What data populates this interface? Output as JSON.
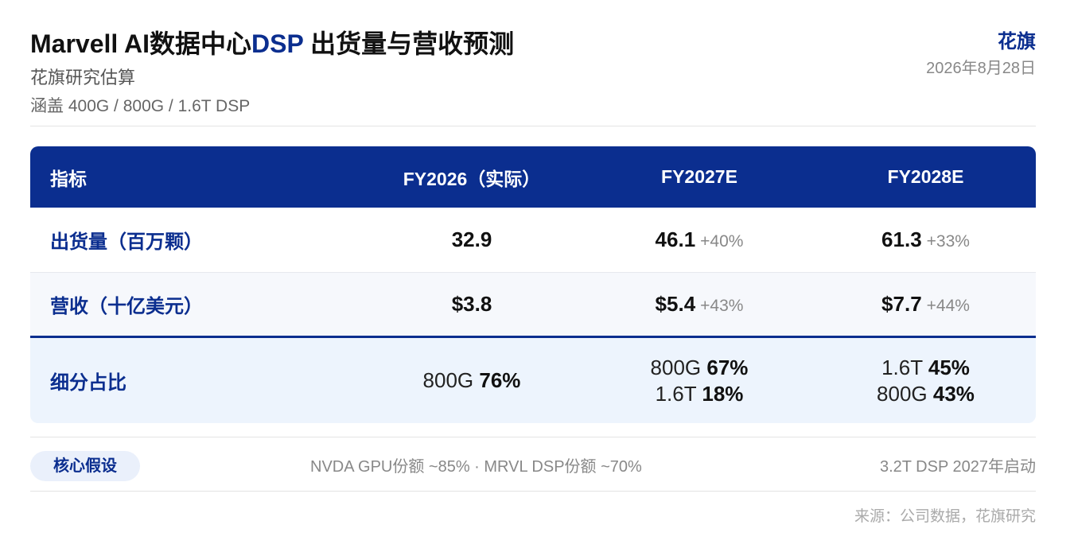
{
  "header": {
    "title_prefix": "Marvell AI数据中心",
    "title_accent": "DSP",
    "title_suffix": " 出货量与营收预测",
    "subtitle": "花旗研究估算",
    "coverage": "涵盖 400G / 800G / 1.6T DSP",
    "brand": "花旗",
    "date": "2026年8月28日"
  },
  "chart_data": {
    "type": "table",
    "columns": [
      "指标",
      "FY2026（实际）",
      "FY2027E",
      "FY2028E"
    ],
    "rows": [
      {
        "label": "出货量（百万颗）",
        "fy2026": {
          "value": "32.9"
        },
        "fy2027": {
          "value": "46.1",
          "change": "+40%"
        },
        "fy2028": {
          "value": "61.3",
          "change": "+33%"
        }
      },
      {
        "label": "营收（十亿美元）",
        "fy2026": {
          "value": "$3.8"
        },
        "fy2027": {
          "value": "$5.4",
          "change": "+43%"
        },
        "fy2028": {
          "value": "$7.7",
          "change": "+44%"
        }
      }
    ],
    "mix_row": {
      "label": "细分占比",
      "fy2026": [
        {
          "product": "800G",
          "share": "76%"
        }
      ],
      "fy2027": [
        {
          "product": "800G",
          "share": "67%"
        },
        {
          "product": "1.6T",
          "share": "18%"
        }
      ],
      "fy2028": [
        {
          "product": "1.6T",
          "share": "45%"
        },
        {
          "product": "800G",
          "share": "43%"
        }
      ]
    }
  },
  "footer": {
    "badge": "核心假设",
    "assumptions": "NVDA GPU份额 ~85% · MRVL DSP份额 ~70%",
    "assumption_2": "3.2T DSP 2027年启动",
    "source": "来源：公司数据，花旗研究"
  },
  "colors": {
    "accent": "#0b2e8f",
    "mix_row_bg": "#edf4fd"
  }
}
